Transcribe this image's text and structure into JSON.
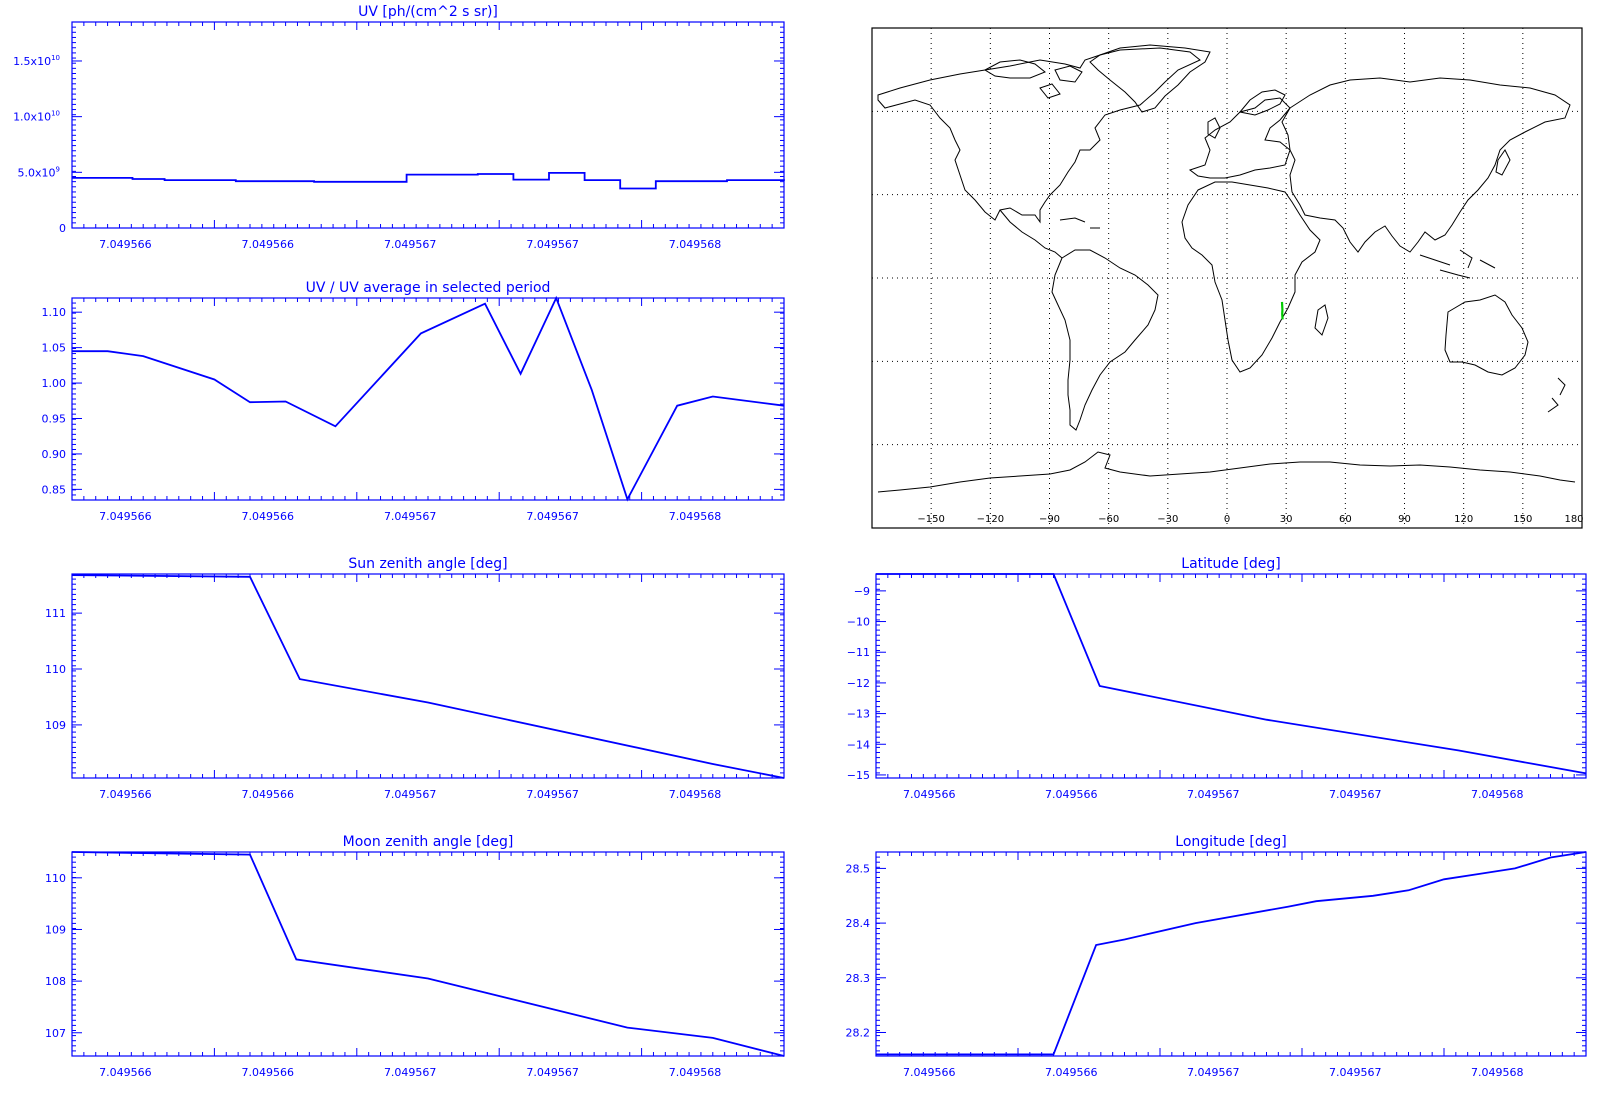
{
  "colors": {
    "plot": "#0000ff",
    "map_land": "#000000",
    "map_grid": "#000000",
    "map_track": "#00cc00",
    "background": "#ffffff"
  },
  "x_tick_labels": [
    "7.049566",
    "7.049566",
    "7.049567",
    "7.049567",
    "7.049568"
  ],
  "map": {
    "lon_ticks": [
      "-150",
      "-120",
      "-90",
      "-60",
      "-30",
      "0",
      "30",
      "60",
      "90",
      "120",
      "150",
      "180"
    ],
    "xlim": [
      -180,
      180
    ],
    "ylim": [
      -90,
      90
    ],
    "grid": true,
    "track": {
      "lon": [
        27.9,
        28.0,
        28.1,
        28.0,
        28.2
      ],
      "lat": [
        -8.6,
        -10.0,
        -11.5,
        -13.0,
        -14.9
      ]
    }
  },
  "chart_data": [
    {
      "id": "uv",
      "type": "line",
      "step": true,
      "title": "UV [ph/(cm^2 s sr)]",
      "xlabel": "",
      "ylabel": "",
      "x_ticks": [
        "7.049566",
        "7.049566",
        "7.049567",
        "7.049567",
        "7.049568"
      ],
      "y_ticks": [
        {
          "value": 0,
          "label": "0"
        },
        {
          "value": 5000000000,
          "mant": "5.0x10",
          "exp": "9"
        },
        {
          "value": 10000000000,
          "mant": "1.0x10",
          "exp": "10"
        },
        {
          "value": 15000000000,
          "mant": "1.5x10",
          "exp": "10"
        }
      ],
      "ylim": [
        0,
        18500000000
      ],
      "x": [
        0,
        0.085,
        0.13,
        0.23,
        0.34,
        0.47,
        0.57,
        0.62,
        0.67,
        0.72,
        0.77,
        0.82,
        0.92,
        1.0
      ],
      "y": [
        4500000000,
        4400000000,
        4300000000,
        4200000000,
        4150000000,
        4800000000,
        4850000000,
        4350000000,
        4950000000,
        4300000000,
        3550000000,
        4200000000,
        4300000000,
        4250000000
      ]
    },
    {
      "id": "uv-ratio",
      "type": "line",
      "title": "UV / UV average in selected period",
      "xlabel": "",
      "ylabel": "",
      "x_ticks": [
        "7.049566",
        "7.049566",
        "7.049567",
        "7.049567",
        "7.049568"
      ],
      "y_ticks": [
        {
          "value": 0.85,
          "label": "0.85"
        },
        {
          "value": 0.9,
          "label": "0.90"
        },
        {
          "value": 0.95,
          "label": "0.95"
        },
        {
          "value": 1.0,
          "label": "1.00"
        },
        {
          "value": 1.05,
          "label": "1.05"
        },
        {
          "value": 1.1,
          "label": "1.10"
        }
      ],
      "ylim": [
        0.835,
        1.12
      ],
      "x": [
        0,
        0.05,
        0.1,
        0.2,
        0.25,
        0.3,
        0.37,
        0.49,
        0.58,
        0.63,
        0.68,
        0.73,
        0.78,
        0.85,
        0.9,
        1.0
      ],
      "y": [
        1.045,
        1.045,
        1.038,
        1.005,
        0.973,
        0.974,
        0.939,
        1.07,
        1.112,
        1.013,
        1.12,
        0.99,
        0.836,
        0.968,
        0.981,
        0.968
      ]
    },
    {
      "id": "sun-zenith",
      "type": "line",
      "title": "Sun zenith angle [deg]",
      "xlabel": "",
      "ylabel": "",
      "x_ticks": [
        "7.049566",
        "7.049566",
        "7.049567",
        "7.049567",
        "7.049568"
      ],
      "y_ticks": [
        {
          "value": 109,
          "label": "109"
        },
        {
          "value": 110,
          "label": "110"
        },
        {
          "value": 111,
          "label": "111"
        }
      ],
      "ylim": [
        108.05,
        111.7
      ],
      "x": [
        0,
        0.25,
        0.32,
        0.5,
        0.9,
        1.0
      ],
      "y": [
        111.68,
        111.65,
        109.82,
        109.4,
        108.3,
        108.05
      ]
    },
    {
      "id": "moon-zenith",
      "type": "line",
      "title": "Moon zenith angle [deg]",
      "xlabel": "",
      "ylabel": "",
      "x_ticks": [
        "7.049566",
        "7.049566",
        "7.049567",
        "7.049567",
        "7.049568"
      ],
      "y_ticks": [
        {
          "value": 107,
          "label": "107"
        },
        {
          "value": 108,
          "label": "108"
        },
        {
          "value": 109,
          "label": "109"
        },
        {
          "value": 110,
          "label": "110"
        }
      ],
      "ylim": [
        106.55,
        110.5
      ],
      "x": [
        0,
        0.25,
        0.315,
        0.5,
        0.78,
        0.9,
        1.0
      ],
      "y": [
        110.5,
        110.45,
        108.42,
        108.05,
        107.1,
        106.9,
        106.55
      ]
    },
    {
      "id": "latitude",
      "type": "line",
      "title": "Latitude [deg]",
      "xlabel": "",
      "ylabel": "",
      "x_ticks": [
        "7.049566",
        "7.049566",
        "7.049567",
        "7.049567",
        "7.049568"
      ],
      "y_ticks": [
        {
          "value": -15,
          "label": "−15"
        },
        {
          "value": -14,
          "label": "−14"
        },
        {
          "value": -13,
          "label": "−13"
        },
        {
          "value": -12,
          "label": "−12"
        },
        {
          "value": -11,
          "label": "−11"
        },
        {
          "value": -10,
          "label": "−10"
        },
        {
          "value": -9,
          "label": "−9"
        }
      ],
      "ylim": [
        -15.1,
        -8.45
      ],
      "x": [
        0,
        0.25,
        0.315,
        0.55,
        0.82,
        1.0
      ],
      "y": [
        -8.45,
        -8.45,
        -12.1,
        -13.2,
        -14.2,
        -14.95
      ]
    },
    {
      "id": "longitude",
      "type": "line",
      "title": "Longitude [deg]",
      "xlabel": "",
      "ylabel": "",
      "x_ticks": [
        "7.049566",
        "7.049566",
        "7.049567",
        "7.049567",
        "7.049568"
      ],
      "y_ticks": [
        {
          "value": 28.2,
          "label": "28.2"
        },
        {
          "value": 28.3,
          "label": "28.3"
        },
        {
          "value": 28.4,
          "label": "28.4"
        },
        {
          "value": 28.5,
          "label": "28.5"
        }
      ],
      "ylim": [
        28.157,
        28.53
      ],
      "x": [
        0,
        0.25,
        0.31,
        0.35,
        0.45,
        0.58,
        0.62,
        0.7,
        0.75,
        0.8,
        0.85,
        0.9,
        0.95,
        1.0
      ],
      "y": [
        28.16,
        28.16,
        28.36,
        28.37,
        28.4,
        28.43,
        28.44,
        28.45,
        28.46,
        28.48,
        28.49,
        28.5,
        28.52,
        28.53
      ]
    }
  ]
}
